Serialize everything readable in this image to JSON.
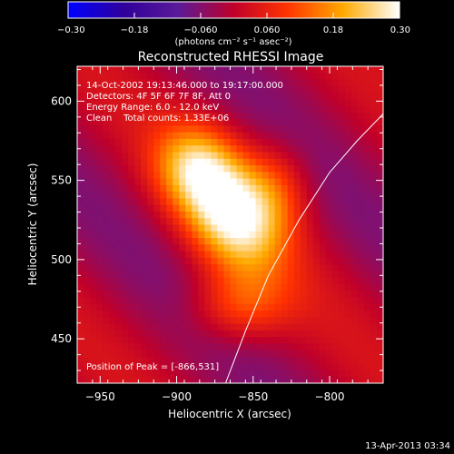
{
  "chart_data": {
    "type": "heatmap",
    "title": "Reconstructed RHESSI Image",
    "xlabel": "Heliocentric X (arcsec)",
    "ylabel": "Heliocentric Y (arcsec)",
    "xlim": [
      -965,
      -765
    ],
    "ylim": [
      422,
      622
    ],
    "xticks": [
      -950,
      -900,
      -850,
      -800
    ],
    "yticks": [
      450,
      500,
      550,
      600
    ],
    "colorbar": {
      "min": -0.3,
      "max": 0.3,
      "ticks": [
        -0.3,
        -0.18,
        -0.06,
        0.06,
        0.18,
        0.3
      ],
      "tick_labels": [
        "-0.30",
        "-0.18",
        "-0.060",
        "0.060",
        "0.18",
        "0.30"
      ],
      "unit_label": "(photons cm⁻² s⁻¹ asec⁻²)"
    },
    "info_lines": [
      "14-Oct-2002 19:13:46.000 to 19:17:00.000",
      "Detectors: 4F 5F 6F 7F 8F, Att 0",
      "Energy Range: 6.0 - 12.0 keV",
      "Clean    Total counts: 1.33E+06"
    ],
    "peak_label": "Position of Peak = [-866,531]",
    "peak": [
      -866,
      531
    ],
    "limb": [
      [
        -868,
        422
      ],
      [
        -855,
        455
      ],
      [
        -840,
        490
      ],
      [
        -820,
        525
      ],
      [
        -800,
        555
      ],
      [
        -782,
        575
      ],
      [
        -765,
        592
      ]
    ],
    "sources": [
      {
        "x": -866,
        "y": 531,
        "amp": 0.3,
        "sx": 20,
        "sy": 30,
        "rot": 0.55
      },
      {
        "x": -890,
        "y": 560,
        "amp": 0.13,
        "sx": 18,
        "sy": 18,
        "rot": 0
      },
      {
        "x": -860,
        "y": 470,
        "amp": 0.12,
        "sx": 22,
        "sy": 16,
        "rot": 0
      },
      {
        "x": -835,
        "y": 545,
        "amp": 0.1,
        "sx": 16,
        "sy": 20,
        "rot": 0
      }
    ],
    "grid": false,
    "legend": "none"
  },
  "footer": {
    "timestamp": "13-Apr-2013 03:34"
  }
}
